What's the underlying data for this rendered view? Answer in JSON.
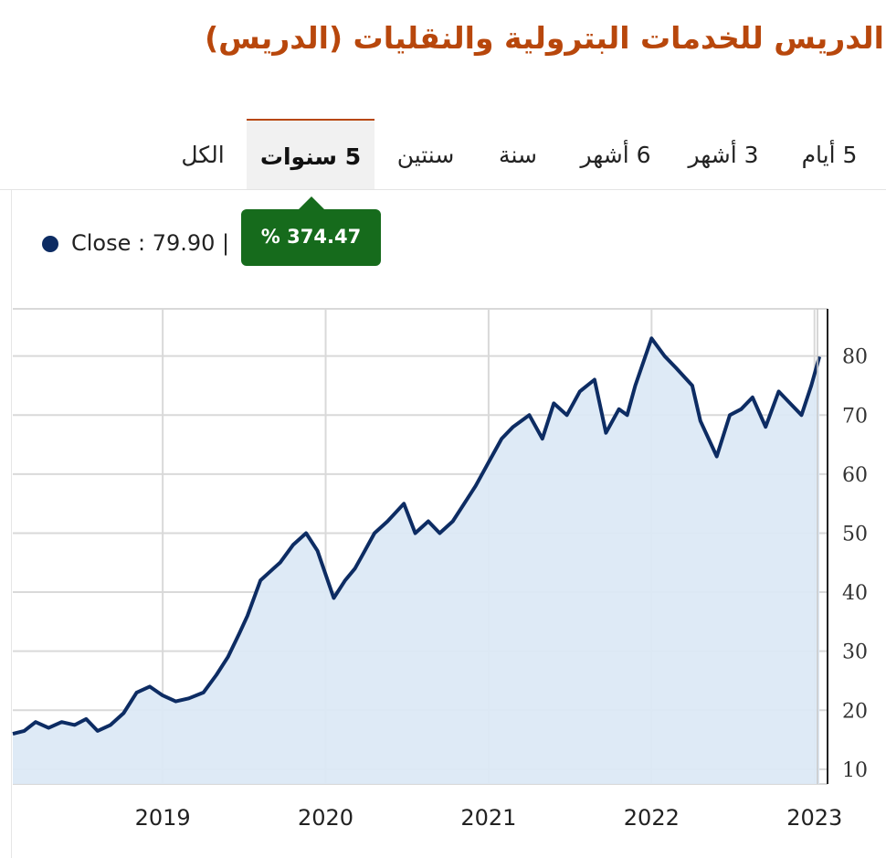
{
  "header": {
    "title": "الدريس للخدمات البترولية والنقليات (الدريس)"
  },
  "tabs": [
    {
      "label": "5 أيام"
    },
    {
      "label": "3 أشهر"
    },
    {
      "label": "6 أشهر"
    },
    {
      "label": "سنة"
    },
    {
      "label": "سنتين"
    },
    {
      "label": "5 سنوات",
      "active": true
    },
    {
      "label": "الكل"
    }
  ],
  "legend": {
    "close_text": "Close : 79.90 |"
  },
  "tooltip": {
    "text": "% 374.47"
  },
  "colors": {
    "line": "#0d2c63",
    "area": "#dce9f5",
    "accent": "#b8470c",
    "tooltip": "#166b1c"
  },
  "chart_data": {
    "type": "area",
    "ylim": [
      7.5,
      88
    ],
    "y_ticks": [
      10,
      20,
      30,
      40,
      50,
      60,
      70,
      80
    ],
    "x_ticks": [
      "2019",
      "2020",
      "2021",
      "2022",
      "2023"
    ],
    "x_tick_values": [
      2019.0,
      2020.0,
      2021.0,
      2022.0,
      2023.0
    ],
    "xlim": [
      2018.08,
      2023.08
    ],
    "series": [
      {
        "x": [
          2018.08,
          2018.15,
          2018.22,
          2018.3,
          2018.38,
          2018.46,
          2018.53,
          2018.6,
          2018.68,
          2018.76,
          2018.84,
          2018.92,
          2019.0,
          2019.08,
          2019.16,
          2019.25,
          2019.33,
          2019.4,
          2019.47,
          2019.52,
          2019.6,
          2019.68,
          2019.72,
          2019.8,
          2019.88,
          2019.95,
          2020.05,
          2020.12,
          2020.18,
          2020.22,
          2020.3,
          2020.38,
          2020.48,
          2020.55,
          2020.63,
          2020.7,
          2020.78,
          2020.85,
          2020.92,
          2021.0,
          2021.08,
          2021.15,
          2021.25,
          2021.33,
          2021.4,
          2021.48,
          2021.56,
          2021.65,
          2021.72,
          2021.8,
          2021.85,
          2021.9,
          2022.0,
          2022.08,
          2022.15,
          2022.25,
          2022.3,
          2022.4,
          2022.48,
          2022.55,
          2022.62,
          2022.7,
          2022.78,
          2022.85,
          2022.92,
          2022.98,
          2023.03
        ],
        "y": [
          16,
          16.5,
          18,
          17,
          18,
          17.5,
          18.5,
          16.5,
          17.5,
          19.5,
          23,
          24,
          22.5,
          21.5,
          22,
          23,
          26,
          29,
          33,
          36,
          42,
          44,
          45,
          48,
          50,
          47,
          39,
          42,
          44,
          46,
          50,
          52,
          55,
          50,
          52,
          50,
          52,
          55,
          58,
          62,
          66,
          68,
          70,
          66,
          72,
          70,
          74,
          76,
          67,
          71,
          70,
          75,
          83,
          80,
          78,
          75,
          69,
          63,
          70,
          71,
          73,
          68,
          74,
          72,
          70,
          75,
          79.9
        ]
      }
    ]
  }
}
